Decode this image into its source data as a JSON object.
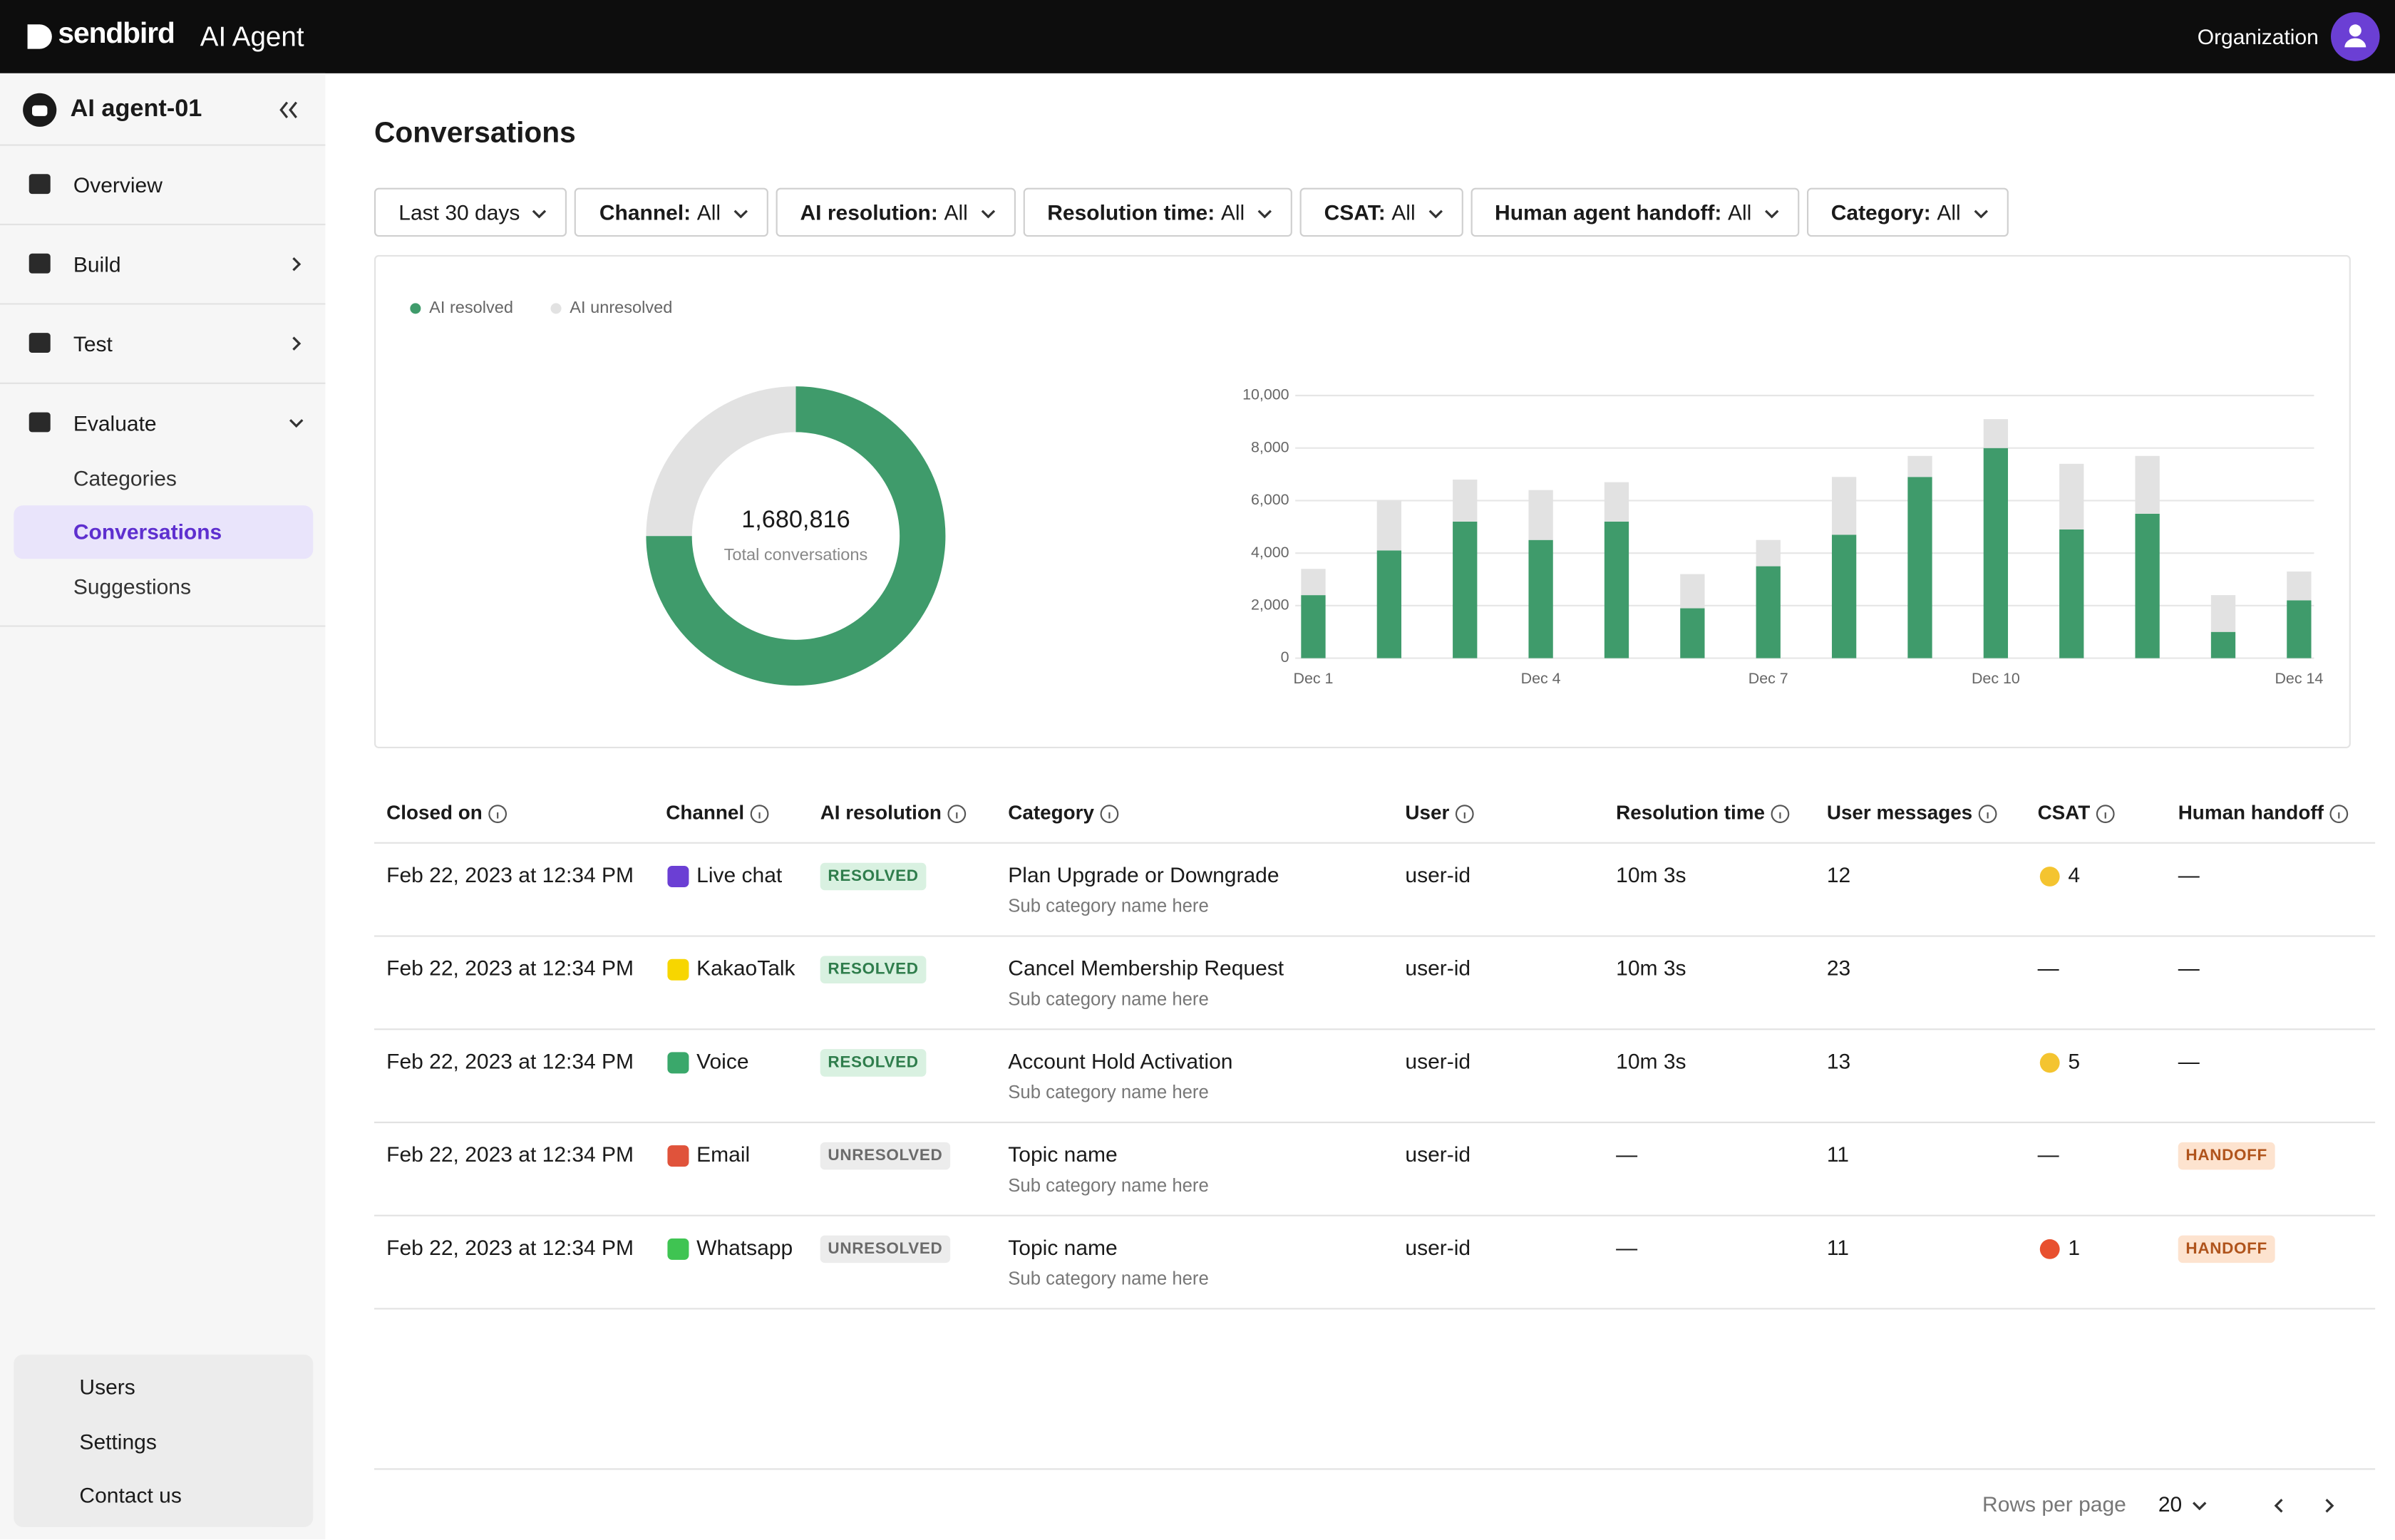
{
  "header": {
    "brand": "sendbird",
    "product": "AI Agent",
    "org": "Organization"
  },
  "sidebar": {
    "agent": "AI agent-01",
    "nav": [
      "Overview",
      "Build",
      "Test",
      "Evaluate"
    ],
    "subnav": [
      "Categories",
      "Conversations",
      "Suggestions"
    ],
    "active": 1,
    "footer": [
      "Users",
      "Settings",
      "Contact us"
    ]
  },
  "page": {
    "title": "Conversations",
    "filters": [
      {
        "label": "Last 30 days"
      },
      {
        "label": "Channel:",
        "value": "All"
      },
      {
        "label": "AI resolution:",
        "value": "All"
      },
      {
        "label": "Resolution time:",
        "value": "All"
      },
      {
        "label": "CSAT:",
        "value": "All"
      },
      {
        "label": "Human agent handoff:",
        "value": "All"
      },
      {
        "label": "Category:",
        "value": "All"
      }
    ]
  },
  "chart_data": [
    {
      "type": "pie",
      "values": [
        75,
        25
      ],
      "colors": [
        "#3f9b6b",
        "#e2e2e2"
      ],
      "center_value": "1,680,816",
      "center_label": "Total conversations"
    },
    {
      "type": "bar",
      "stacked": true,
      "categories": [
        "Dec 1",
        null,
        null,
        "Dec 4",
        null,
        null,
        "Dec 7",
        null,
        null,
        "Dec 10",
        null,
        null,
        null,
        "Dec 14"
      ],
      "series": [
        {
          "name": "AI resolved",
          "color": "#3f9b6b",
          "values": [
            2400,
            4100,
            5200,
            4500,
            5200,
            1900,
            3500,
            4700,
            6900,
            8000,
            4900,
            5500,
            1000,
            2200
          ]
        },
        {
          "name": "AI unresolved",
          "color": "#e2e2e2",
          "values": [
            1000,
            1900,
            1600,
            1900,
            1500,
            1300,
            1000,
            2200,
            800,
            1100,
            2500,
            2200,
            1400,
            1100
          ]
        }
      ],
      "ylim": [
        0,
        10000
      ],
      "yticks": [
        0,
        {
          "value": 2000,
          "label": "2,000"
        },
        {
          "value": 4000,
          "label": "4,000"
        },
        {
          "value": 6000,
          "label": "6,000"
        },
        {
          "value": 8000,
          "label": "8,000"
        },
        {
          "value": 10000,
          "label": "10,000"
        }
      ],
      "grid": true
    }
  ],
  "table": {
    "columns": [
      "Closed on",
      "Channel",
      "AI resolution",
      "Category",
      "User",
      "Resolution time",
      "User messages",
      "CSAT",
      "Human handoff"
    ],
    "rows": [
      {
        "closed_on": "Feb 22, 2023 at 12:34 PM",
        "channel": {
          "name": "Live chat",
          "color": "#6b3fd4"
        },
        "resolution": {
          "text": "RESOLVED",
          "bg": "#d9f1e1",
          "fg": "#2f7d4c"
        },
        "category": "Plan Upgrade or Downgrade",
        "subcategory": "Sub category name here",
        "user": "user-id",
        "resolution_time": "10m 3s",
        "user_messages": 12,
        "csat": {
          "score": 4,
          "color": "#f4c430"
        },
        "handoff": "—"
      },
      {
        "closed_on": "Feb 22, 2023 at 12:34 PM",
        "channel": {
          "name": "KakaoTalk",
          "color": "#f7d600"
        },
        "resolution": {
          "text": "RESOLVED",
          "bg": "#d9f1e1",
          "fg": "#2f7d4c"
        },
        "category": "Cancel Membership Request",
        "subcategory": "Sub category name here",
        "user": "user-id",
        "resolution_time": "10m 3s",
        "user_messages": 23,
        "csat": "—",
        "handoff": "—"
      },
      {
        "closed_on": "Feb 22, 2023 at 12:34 PM",
        "channel": {
          "name": "Voice",
          "color": "#3aa86b"
        },
        "resolution": {
          "text": "RESOLVED",
          "bg": "#d9f1e1",
          "fg": "#2f7d4c"
        },
        "category": "Account Hold Activation",
        "subcategory": "Sub category name here",
        "user": "user-id",
        "resolution_time": "10m 3s",
        "user_messages": 13,
        "csat": {
          "score": 5,
          "color": "#f4c430"
        },
        "handoff": "—"
      },
      {
        "closed_on": "Feb 22, 2023 at 12:34 PM",
        "channel": {
          "name": "Email",
          "color": "#e0533b"
        },
        "resolution": {
          "text": "UNRESOLVED",
          "bg": "#ececec",
          "fg": "#6b6b6b"
        },
        "category": "Topic name",
        "subcategory": "Sub category name here",
        "user": "user-id",
        "resolution_time": "—",
        "user_messages": 11,
        "csat": "—",
        "handoff": {
          "text": "HANDOFF",
          "bg": "#fde3cf",
          "fg": "#b0541c"
        }
      },
      {
        "closed_on": "Feb 22, 2023 at 12:34 PM",
        "channel": {
          "name": "Whatsapp",
          "color": "#3fc452"
        },
        "resolution": {
          "text": "UNRESOLVED",
          "bg": "#ececec",
          "fg": "#6b6b6b"
        },
        "category": "Topic name",
        "subcategory": "Sub category name here",
        "user": "user-id",
        "resolution_time": "—",
        "user_messages": 11,
        "csat": {
          "score": 1,
          "color": "#e8502f"
        },
        "handoff": {
          "text": "HANDOFF",
          "bg": "#fde3cf",
          "fg": "#b0541c"
        }
      }
    ]
  },
  "pagination": {
    "label": "Rows per page",
    "value": "20"
  }
}
